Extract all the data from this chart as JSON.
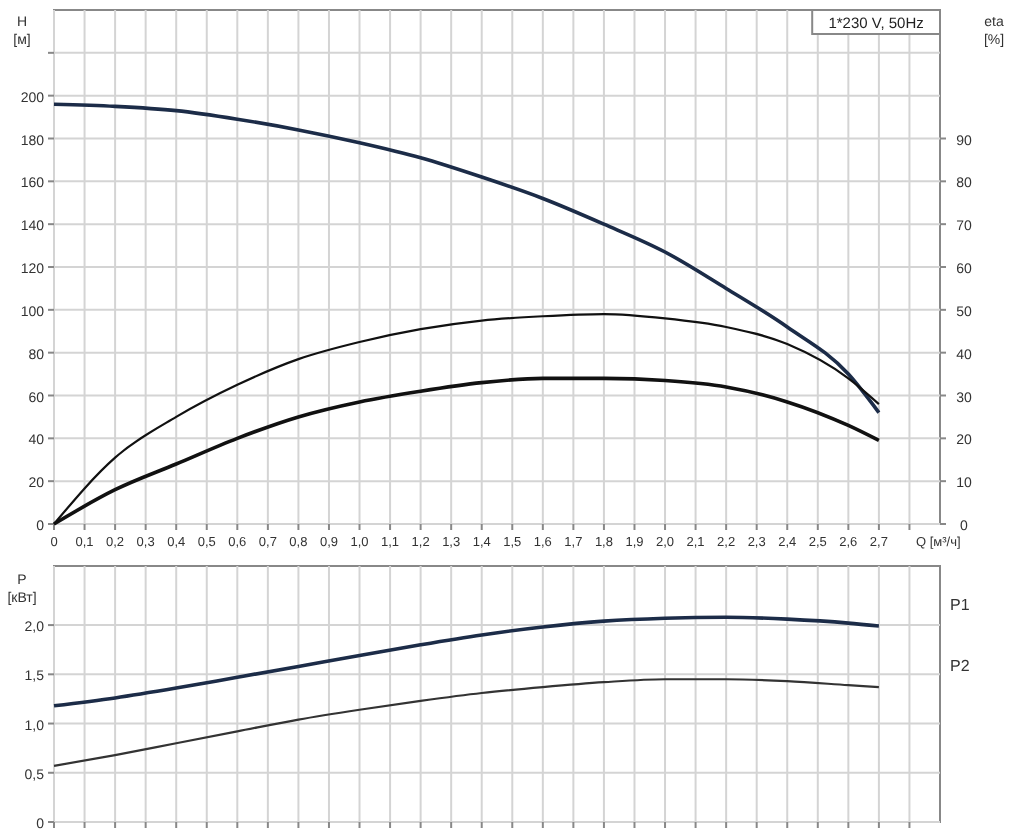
{
  "chart_data": [
    {
      "type": "line",
      "xlabel": "Q [м³/ч]",
      "ylabel": "H [м]",
      "y2label": "eta [%]",
      "annotations": [
        "1*230 V, 50Hz"
      ],
      "grid": true,
      "xlim": [
        0,
        2.9
      ],
      "xticks": [
        0,
        {
          "value": 0.1,
          "label": "0,1"
        },
        {
          "value": 0.2,
          "label": "0,2"
        },
        {
          "value": 0.3,
          "label": "0,3"
        },
        {
          "value": 0.4,
          "label": "0,4"
        },
        {
          "value": 0.5,
          "label": "0,5"
        },
        {
          "value": 0.6,
          "label": "0,6"
        },
        {
          "value": 0.7,
          "label": "0,7"
        },
        {
          "value": 0.8,
          "label": "0,8"
        },
        {
          "value": 0.9,
          "label": "0,9"
        },
        {
          "value": 1.0,
          "label": "1,0"
        },
        {
          "value": 1.1,
          "label": "1,1"
        },
        {
          "value": 1.2,
          "label": "1,2"
        },
        {
          "value": 1.3,
          "label": "1,3"
        },
        {
          "value": 1.4,
          "label": "1,4"
        },
        {
          "value": 1.5,
          "label": "1,5"
        },
        {
          "value": 1.6,
          "label": "1,6"
        },
        {
          "value": 1.7,
          "label": "1,7"
        },
        {
          "value": 1.8,
          "label": "1,8"
        },
        {
          "value": 1.9,
          "label": "1,9"
        },
        {
          "value": 2.0,
          "label": "2,0"
        },
        {
          "value": 2.1,
          "label": "2,1"
        },
        {
          "value": 2.2,
          "label": "2,2"
        },
        {
          "value": 2.3,
          "label": "2,3"
        },
        {
          "value": 2.4,
          "label": "2,4"
        },
        {
          "value": 2.5,
          "label": "2,5"
        },
        {
          "value": 2.6,
          "label": "2,6"
        },
        {
          "value": 2.7,
          "label": "2,7"
        },
        {
          "value": 2.8,
          "label": null
        }
      ],
      "ylim": [
        0,
        240
      ],
      "yticks": [
        0,
        20,
        40,
        60,
        80,
        100,
        120,
        140,
        160,
        180,
        200,
        {
          "value": 220,
          "label": null
        }
      ],
      "y2lim": [
        0,
        120
      ],
      "y2ticks": [
        0,
        10,
        20,
        30,
        40,
        50,
        60,
        70,
        80,
        90
      ],
      "x": [
        0,
        0.2,
        0.4,
        0.6,
        0.8,
        1.0,
        1.2,
        1.4,
        1.6,
        1.8,
        2.0,
        2.2,
        2.4,
        2.6,
        2.7
      ],
      "series": [
        {
          "color": "#1c2c48",
          "values": [
            196,
            195,
            193,
            189,
            184,
            178,
            171,
            162,
            152,
            140,
            127,
            110,
            92,
            70,
            52
          ]
        },
        {
          "color": "#111111",
          "axis": "y2",
          "values": [
            0,
            15.5,
            25,
            32.5,
            38.5,
            42.5,
            45.5,
            47.5,
            48.5,
            49,
            48,
            46,
            42,
            34,
            28
          ]
        },
        {
          "color": "#111111",
          "axis": "y2",
          "values": [
            0,
            8,
            14,
            20,
            25,
            28.5,
            31,
            33,
            34,
            34,
            33.5,
            32,
            28.5,
            23,
            19.5
          ]
        }
      ]
    },
    {
      "type": "line",
      "ylabel": "P [кВт]",
      "grid": true,
      "tick_labels": "y",
      "xlim": [
        0,
        2.9
      ],
      "xticks": [
        0,
        0.1,
        0.2,
        0.3,
        0.4,
        0.5,
        0.6,
        0.7,
        0.8,
        0.9,
        1.0,
        1.1,
        1.2,
        1.3,
        1.4,
        1.5,
        1.6,
        1.7,
        1.8,
        1.9,
        2.0,
        2.1,
        2.2,
        2.3,
        2.4,
        2.5,
        2.6,
        2.7,
        2.8
      ],
      "ylim": [
        0,
        2.6
      ],
      "yticks": [
        0,
        {
          "value": 0.5,
          "label": "0,5"
        },
        {
          "value": 1.0,
          "label": "1,0"
        },
        {
          "value": 1.5,
          "label": "1,5"
        },
        {
          "value": 2.0,
          "label": "2,0"
        }
      ],
      "x": [
        0,
        0.2,
        0.4,
        0.6,
        0.8,
        1.0,
        1.2,
        1.4,
        1.6,
        1.8,
        2.0,
        2.2,
        2.4,
        2.6,
        2.7
      ],
      "series": [
        {
          "name": "P1",
          "color": "#1c2c48",
          "values": [
            1.18,
            1.26,
            1.36,
            1.47,
            1.58,
            1.69,
            1.8,
            1.9,
            1.98,
            2.04,
            2.07,
            2.08,
            2.06,
            2.02,
            1.99
          ]
        },
        {
          "name": "P2",
          "color": "#333333",
          "values": [
            0.57,
            0.68,
            0.8,
            0.92,
            1.04,
            1.14,
            1.23,
            1.31,
            1.37,
            1.42,
            1.45,
            1.45,
            1.43,
            1.39,
            1.37
          ]
        }
      ]
    }
  ]
}
